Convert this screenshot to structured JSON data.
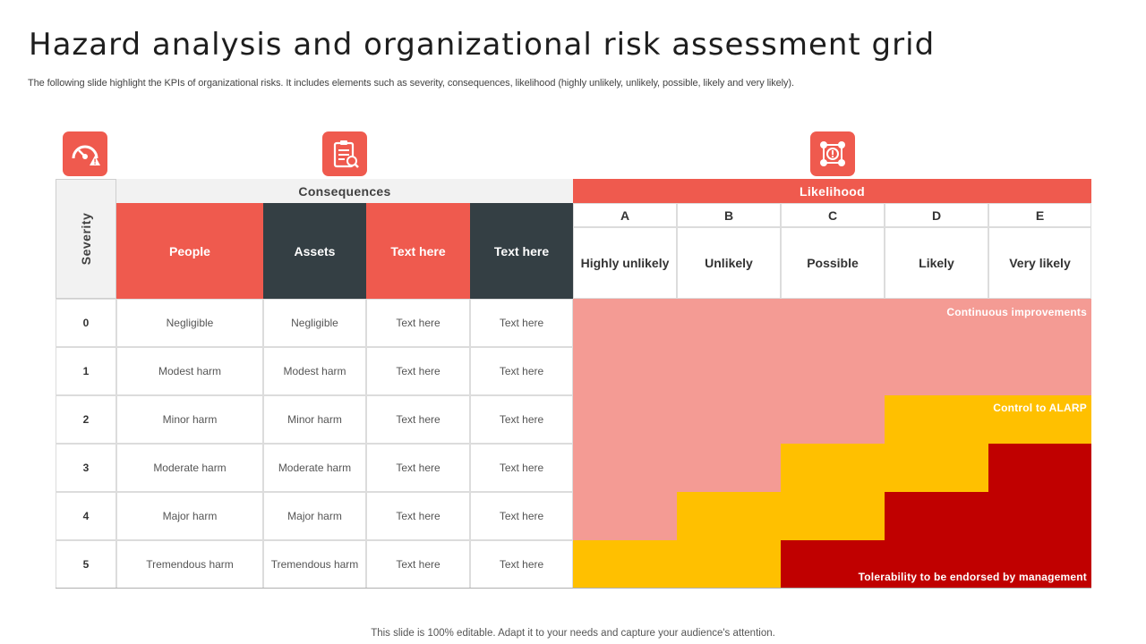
{
  "title": "Hazard analysis and organizational risk assessment grid",
  "subtitle": "The following slide highlight the KPIs of organizational risks. It includes elements such as severity, consequences, likelihood (highly unlikely, unlikely, possible, likely and very likely).",
  "footer": "This slide is 100% editable. Adapt it to your needs and capture your audience's attention.",
  "icons": [
    "speedometer-warning-icon",
    "clipboard-checklist-icon",
    "network-alert-icon"
  ],
  "colors": {
    "accent": "#ef5a4e",
    "dark": "#343f44",
    "zone_low": "#f49b94",
    "zone_medium": "#ffc000",
    "zone_high": "#c00000"
  },
  "headers": {
    "severity": "Severity",
    "consequences": "Consequences",
    "likelihood": "Likelihood"
  },
  "consequence_columns": [
    "People",
    "Assets",
    "Text here",
    "Text here"
  ],
  "likelihood_columns": [
    {
      "letter": "A",
      "label": "Highly unlikely"
    },
    {
      "letter": "B",
      "label": "Unlikely"
    },
    {
      "letter": "C",
      "label": "Possible"
    },
    {
      "letter": "D",
      "label": "Likely"
    },
    {
      "letter": "E",
      "label": "Very likely"
    }
  ],
  "rows": [
    {
      "severity": "0",
      "cells": [
        "Negligible",
        "Negligible",
        "Text here",
        "Text here"
      ]
    },
    {
      "severity": "1",
      "cells": [
        "Modest harm",
        "Modest harm",
        "Text here",
        "Text here"
      ]
    },
    {
      "severity": "2",
      "cells": [
        "Minor harm",
        "Minor harm",
        "Text here",
        "Text here"
      ]
    },
    {
      "severity": "3",
      "cells": [
        "Moderate harm",
        "Moderate harm",
        "Text here",
        "Text here"
      ]
    },
    {
      "severity": "4",
      "cells": [
        "Major harm",
        "Major harm",
        "Text here",
        "Text here"
      ]
    },
    {
      "severity": "5",
      "cells": [
        "Tremendous harm",
        "Tremendous harm",
        "Text here",
        "Text here"
      ]
    }
  ],
  "risk_matrix": [
    [
      "low",
      "low",
      "low",
      "low",
      "low"
    ],
    [
      "low",
      "low",
      "low",
      "low",
      "low"
    ],
    [
      "low",
      "low",
      "low",
      "medium",
      "medium"
    ],
    [
      "low",
      "low",
      "medium",
      "medium",
      "high"
    ],
    [
      "low",
      "medium",
      "medium",
      "high",
      "high"
    ],
    [
      "medium",
      "medium",
      "high",
      "high",
      "high"
    ]
  ],
  "zones": {
    "low": "Continuous improvements",
    "medium": "Control to ALARP",
    "high": "Tolerability to be endorsed by management"
  }
}
